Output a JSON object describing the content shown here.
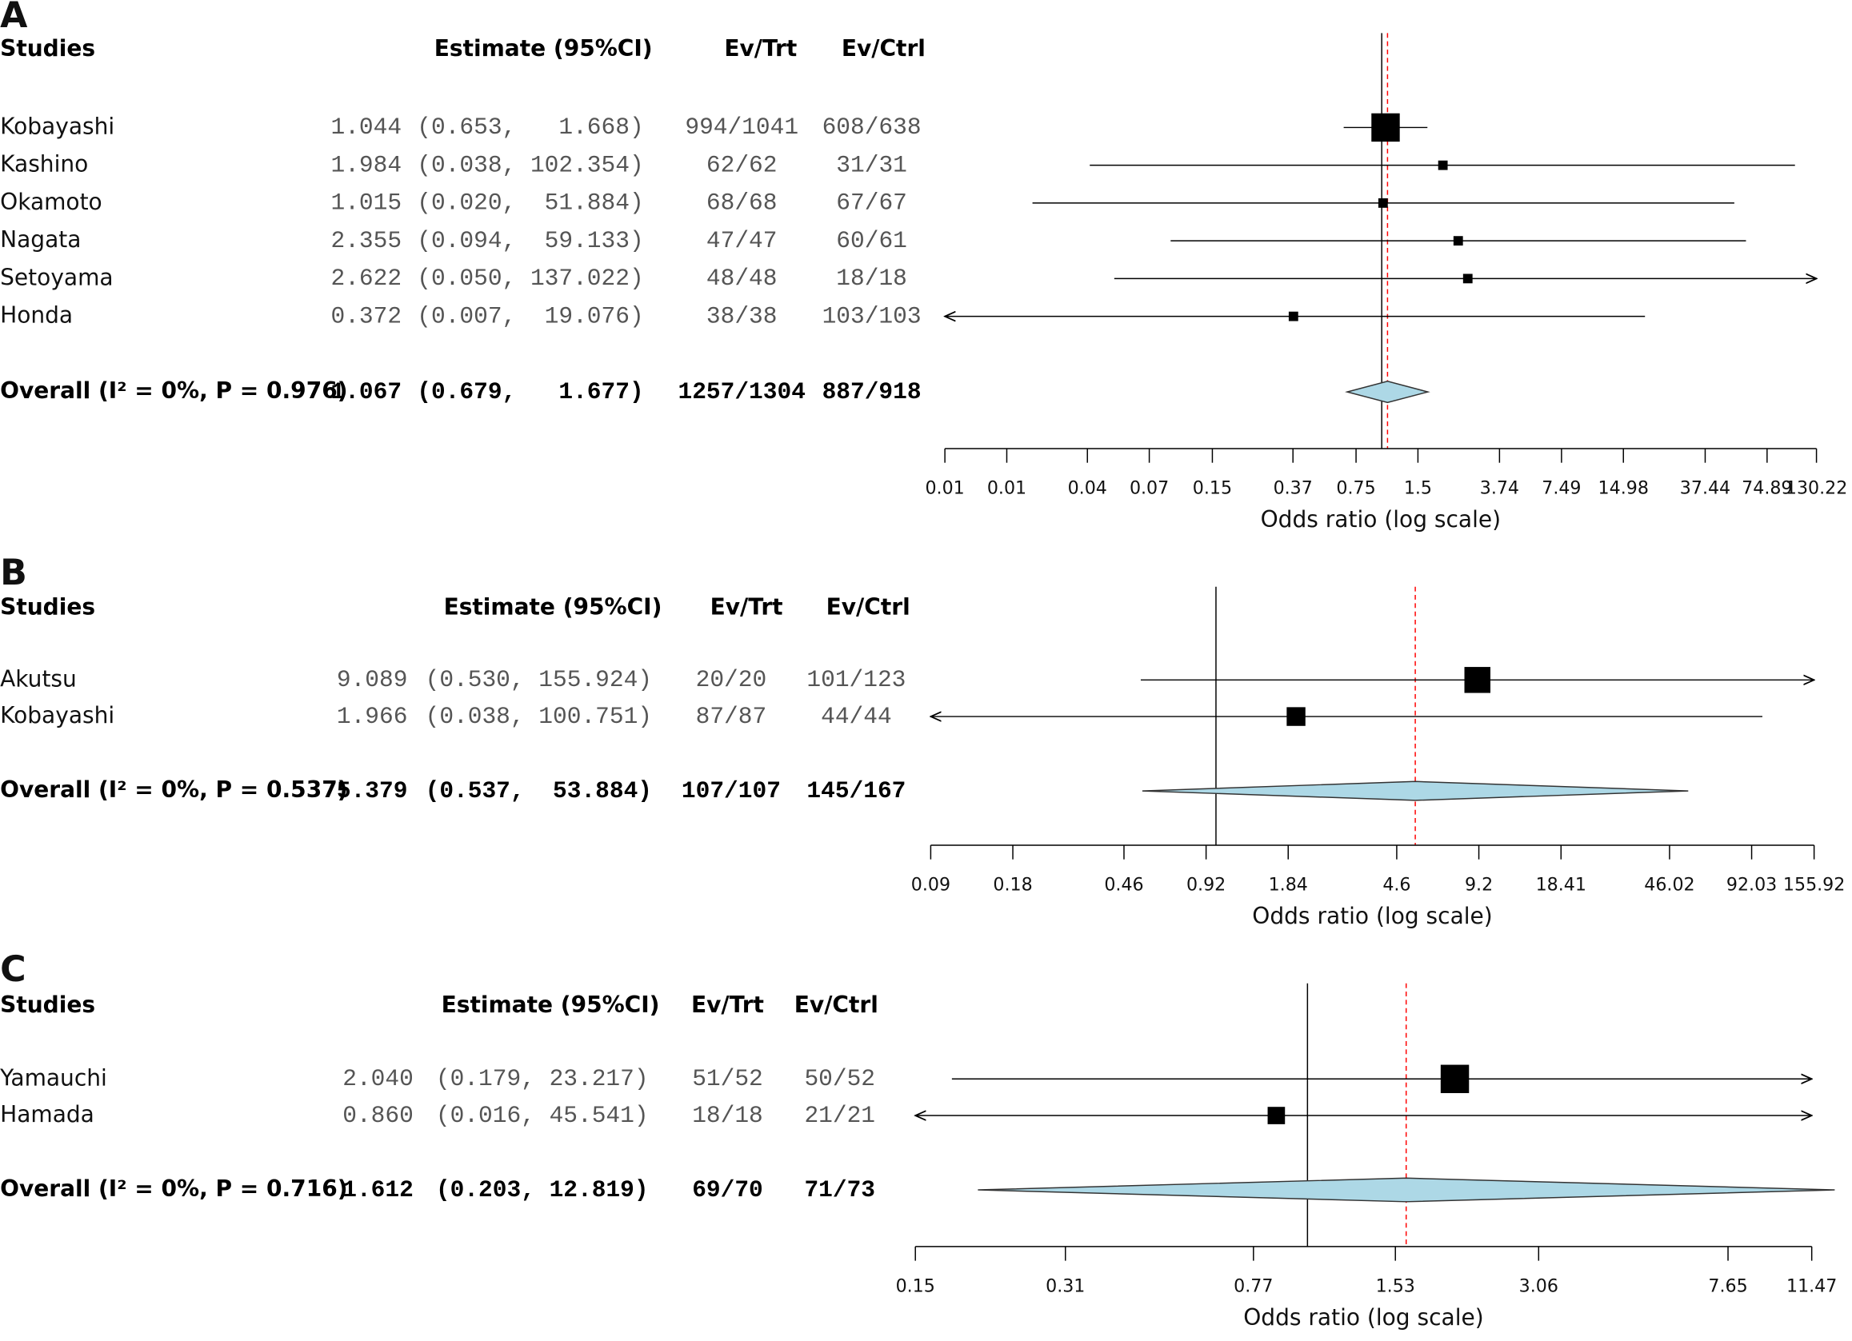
{
  "chart_data": [
    {
      "type": "forest",
      "panel": "A",
      "headers": {
        "studies": "Studies",
        "estimate": "Estimate (95%CI)",
        "ev_trt": "Ev/Trt",
        "ev_ctrl": "Ev/Ctrl"
      },
      "rows": [
        {
          "study": "Kobayashi",
          "estimate": 1.044,
          "lower": 0.653,
          "upper": 1.668,
          "ci_label": "(0.653,   1.668)",
          "ev_trt": "994/1041",
          "ev_ctrl": "608/638"
        },
        {
          "study": "Kashino",
          "estimate": 1.984,
          "lower": 0.038,
          "upper": 102.354,
          "ci_label": "(0.038, 102.354)",
          "ev_trt": "62/62",
          "ev_ctrl": "31/31"
        },
        {
          "study": "Okamoto",
          "estimate": 1.015,
          "lower": 0.02,
          "upper": 51.884,
          "ci_label": "(0.020,  51.884)",
          "ev_trt": "68/68",
          "ev_ctrl": "67/67"
        },
        {
          "study": "Nagata",
          "estimate": 2.355,
          "lower": 0.094,
          "upper": 59.133,
          "ci_label": "(0.094,  59.133)",
          "ev_trt": "47/47",
          "ev_ctrl": "60/61"
        },
        {
          "study": "Setoyama",
          "estimate": 2.622,
          "lower": 0.05,
          "upper": 137.022,
          "ci_label": "(0.050, 137.022)",
          "ev_trt": "48/48",
          "ev_ctrl": "18/18"
        },
        {
          "study": "Honda",
          "estimate": 0.372,
          "lower": 0.007,
          "upper": 19.076,
          "ci_label": "(0.007,  19.076)",
          "ev_trt": "38/38",
          "ev_ctrl": "103/103"
        }
      ],
      "overall": {
        "label": "Overall (I² = 0%, P = 0.976)",
        "estimate": 1.067,
        "lower": 0.679,
        "upper": 1.677,
        "ci_label": "(0.679,   1.677)",
        "ev_trt": "1257/1304",
        "ev_ctrl": "887/918"
      },
      "xlabel": "Odds ratio (log scale)",
      "log_x": true,
      "xlim": [
        0.0075,
        130.22
      ],
      "xticks": [
        {
          "value": 0.0075,
          "label": "0.01"
        },
        {
          "value": 0.015,
          "label": "0.01"
        },
        {
          "value": 0.037,
          "label": "0.04"
        },
        {
          "value": 0.074,
          "label": "0.07"
        },
        0.15,
        0.37,
        0.75,
        1.5,
        3.74,
        7.49,
        14.98,
        37.44,
        74.89,
        130.22
      ],
      "null_line": 1,
      "box_color": "#000000",
      "diamond_color": "#add8e6",
      "ref_color": "#ff0000"
    },
    {
      "type": "forest",
      "panel": "B",
      "headers": {
        "studies": "Studies",
        "estimate": "Estimate (95%CI)",
        "ev_trt": "Ev/Trt",
        "ev_ctrl": "Ev/Ctrl"
      },
      "rows": [
        {
          "study": "Akutsu",
          "estimate": 9.089,
          "lower": 0.53,
          "upper": 155.924,
          "ci_label": "(0.530, 155.924)",
          "ev_trt": "20/20",
          "ev_ctrl": "101/123"
        },
        {
          "study": "Kobayashi",
          "estimate": 1.966,
          "lower": 0.038,
          "upper": 100.751,
          "ci_label": "(0.038, 100.751)",
          "ev_trt": "87/87",
          "ev_ctrl": "44/44"
        }
      ],
      "overall": {
        "label": "Overall (I² = 0%, P = 0.537)",
        "estimate": 5.379,
        "lower": 0.537,
        "upper": 53.884,
        "ci_label": "(0.537,  53.884)",
        "ev_trt": "107/107",
        "ev_ctrl": "145/167"
      },
      "xlabel": "Odds ratio (log scale)",
      "log_x": true,
      "xlim": [
        0.09,
        155.92
      ],
      "xticks": [
        0.09,
        0.18,
        0.46,
        0.92,
        1.84,
        4.6,
        9.2,
        18.41,
        46.02,
        92.03,
        155.92
      ],
      "null_line": 1,
      "box_color": "#000000",
      "diamond_color": "#add8e6",
      "ref_color": "#ff0000"
    },
    {
      "type": "forest",
      "panel": "C",
      "headers": {
        "studies": "Studies",
        "estimate": "Estimate (95%CI)",
        "ev_trt": "Ev/Trt",
        "ev_ctrl": "Ev/Ctrl"
      },
      "rows": [
        {
          "study": "Yamauchi",
          "estimate": 2.04,
          "estimate_label": "2.040",
          "lower": 0.179,
          "upper": 23.217,
          "ci_label": "(0.179, 23.217)",
          "ev_trt": "51/52",
          "ev_ctrl": "50/52"
        },
        {
          "study": "Hamada",
          "estimate": 0.86,
          "estimate_label": "0.860",
          "lower": 0.016,
          "upper": 45.541,
          "ci_label": "(0.016, 45.541)",
          "ev_trt": "18/18",
          "ev_ctrl": "21/21"
        }
      ],
      "overall": {
        "label": "Overall (I² = 0%, P = 0.716)",
        "estimate": 1.612,
        "lower": 0.203,
        "upper": 12.819,
        "ci_label": "(0.203, 12.819)",
        "ev_trt": "69/70",
        "ev_ctrl": "71/73"
      },
      "xlabel": "Odds ratio (log scale)",
      "log_x": true,
      "xlim": [
        0.15,
        11.47
      ],
      "xticks": [
        0.15,
        0.31,
        0.77,
        1.53,
        3.06,
        7.65,
        11.47
      ],
      "null_line": 1,
      "box_color": "#000000",
      "diamond_color": "#add8e6",
      "ref_color": "#ff0000"
    }
  ]
}
